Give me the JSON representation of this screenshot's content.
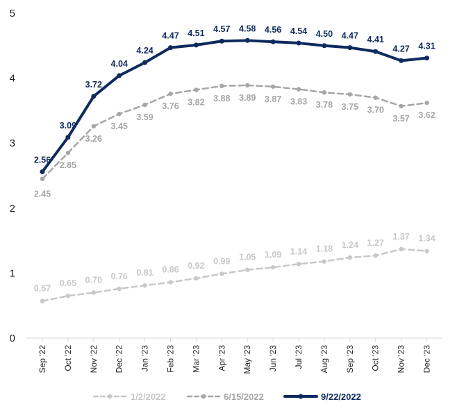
{
  "chart_data": {
    "type": "line",
    "title": "",
    "xlabel": "",
    "ylabel": "",
    "ylim": [
      0,
      5
    ],
    "yticks": [
      "0",
      "1",
      "2",
      "3",
      "4",
      "5"
    ],
    "grid": false,
    "legend_position": "bottom",
    "categories": [
      "Sep '22",
      "Oct '22",
      "Nov '22",
      "Dec '22",
      "Jan '23",
      "Feb '23",
      "Mar '23",
      "Apr '23",
      "May '23",
      "Jun '23",
      "Jul '23",
      "Aug '23",
      "Sep '23",
      "Oct '23",
      "Nov '23",
      "Dec '23"
    ],
    "series": [
      {
        "name": "1/2/2022",
        "color": "#c8c8c8",
        "style": "dashed",
        "values": [
          0.57,
          0.65,
          0.7,
          0.76,
          0.81,
          0.86,
          0.92,
          0.99,
          1.05,
          1.09,
          1.14,
          1.18,
          1.24,
          1.27,
          1.37,
          1.34
        ],
        "labels": [
          "0.57",
          "0.65",
          "0.70",
          "0.76",
          "0.81",
          "0.86",
          "0.92",
          "0.99",
          "1.05",
          "1.09",
          "1.14",
          "1.18",
          "1.24",
          "1.27",
          "1.37",
          "1.34"
        ]
      },
      {
        "name": "6/15/2022",
        "color": "#a6a6a6",
        "style": "dashed",
        "values": [
          2.45,
          2.85,
          3.26,
          3.45,
          3.59,
          3.76,
          3.82,
          3.88,
          3.89,
          3.87,
          3.83,
          3.78,
          3.75,
          3.7,
          3.57,
          3.62
        ],
        "labels": [
          "2.45",
          "2.85",
          "3.26",
          "3.45",
          "3.59",
          "3.76",
          "3.82",
          "3.88",
          "3.89",
          "3.87",
          "3.83",
          "3.78",
          "3.75",
          "3.70",
          "3.57",
          "3.62"
        ]
      },
      {
        "name": "9/22/2022",
        "color": "#0f2a5e",
        "style": "solid",
        "values": [
          2.56,
          3.09,
          3.72,
          4.04,
          4.24,
          4.47,
          4.51,
          4.57,
          4.58,
          4.56,
          4.54,
          4.5,
          4.47,
          4.41,
          4.27,
          4.31
        ],
        "labels": [
          "2.56",
          "3.09",
          "3.72",
          "4.04",
          "4.24",
          "4.47",
          "4.51",
          "4.57",
          "4.58",
          "4.56",
          "4.54",
          "4.50",
          "4.47",
          "4.41",
          "4.27",
          "4.31"
        ]
      }
    ]
  }
}
